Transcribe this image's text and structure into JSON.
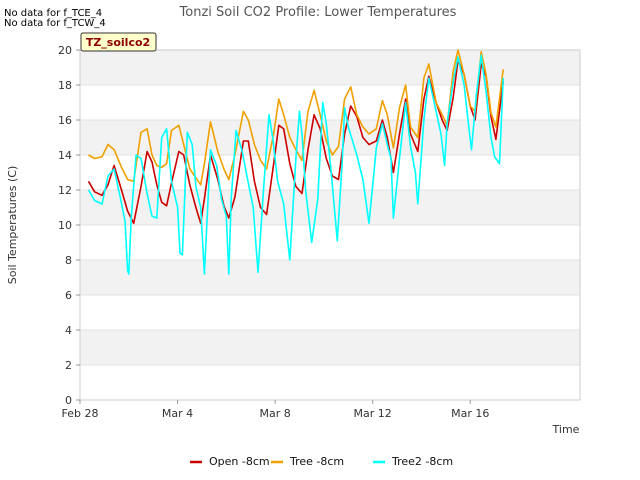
{
  "header_notes": [
    "No data for f_TCE_4",
    "No data for f_TCW_4"
  ],
  "badge": "TZ_soilco2",
  "chart_data": {
    "type": "line",
    "title": "Tonzi Soil CO2 Profile: Lower Temperatures",
    "xlabel": "Time",
    "ylabel": "Soil Temperatures (C)",
    "xlim": [
      0,
      20.5
    ],
    "ylim": [
      0,
      20
    ],
    "x_tick_values": [
      0,
      4,
      8,
      12,
      16
    ],
    "x_tick_labels": [
      "Feb 28",
      "Mar 4",
      "Mar 8",
      "Mar 12",
      "Mar 16"
    ],
    "y_ticks": [
      0,
      2,
      4,
      6,
      8,
      10,
      12,
      14,
      16,
      18,
      20
    ],
    "grid": true,
    "legend_position": "bottom",
    "x_unit": "days since Feb 28",
    "series": [
      {
        "name": "Open -8cm",
        "color": "#cc0000",
        "x": [
          0.35,
          0.6,
          0.9,
          1.15,
          1.4,
          1.7,
          1.95,
          2.2,
          2.5,
          2.75,
          2.95,
          3.15,
          3.35,
          3.55,
          3.75,
          4.05,
          4.25,
          4.5,
          4.75,
          4.95,
          5.1,
          5.35,
          5.65,
          5.9,
          6.1,
          6.35,
          6.7,
          6.9,
          7.15,
          7.4,
          7.65,
          7.95,
          8.15,
          8.35,
          8.6,
          8.85,
          9.1,
          9.35,
          9.6,
          9.85,
          10.1,
          10.35,
          10.6,
          10.85,
          11.1,
          11.35,
          11.6,
          11.85,
          12.15,
          12.4,
          12.6,
          12.85,
          13.1,
          13.35,
          13.55,
          13.85,
          14.1,
          14.3,
          14.6,
          14.85,
          15.05,
          15.3,
          15.5,
          15.75,
          16.0,
          16.2,
          16.45,
          16.65,
          16.85,
          17.05,
          17.35
        ],
        "y": [
          12.5,
          11.9,
          11.7,
          12.3,
          13.4,
          12.0,
          10.8,
          10.1,
          12.2,
          14.2,
          13.6,
          12.3,
          11.3,
          11.1,
          12.4,
          14.2,
          14.0,
          12.3,
          11.0,
          10.1,
          11.5,
          14.0,
          12.6,
          11.1,
          10.4,
          11.6,
          14.8,
          14.8,
          12.5,
          11.0,
          10.6,
          13.6,
          15.7,
          15.5,
          13.5,
          12.2,
          11.8,
          14.3,
          16.3,
          15.5,
          13.8,
          12.8,
          12.6,
          15.2,
          16.8,
          16.2,
          15.0,
          14.6,
          14.8,
          16.0,
          15.0,
          13.0,
          15.2,
          17.2,
          15.2,
          14.2,
          17.2,
          18.5,
          17.0,
          16.0,
          15.4,
          17.3,
          19.4,
          18.6,
          16.8,
          16.0,
          19.2,
          18.5,
          16.2,
          14.9,
          18.2
        ]
      },
      {
        "name": "Tree -8cm",
        "color": "#f0a000",
        "x": [
          0.35,
          0.6,
          0.9,
          1.15,
          1.4,
          1.7,
          1.95,
          2.2,
          2.5,
          2.75,
          2.95,
          3.15,
          3.35,
          3.55,
          3.75,
          4.05,
          4.25,
          4.5,
          4.75,
          4.95,
          5.1,
          5.35,
          5.65,
          5.9,
          6.1,
          6.35,
          6.7,
          6.9,
          7.15,
          7.4,
          7.65,
          7.95,
          8.15,
          8.35,
          8.6,
          8.85,
          9.1,
          9.35,
          9.6,
          9.85,
          10.1,
          10.35,
          10.6,
          10.85,
          11.1,
          11.35,
          11.6,
          11.85,
          12.15,
          12.4,
          12.6,
          12.85,
          13.1,
          13.35,
          13.55,
          13.85,
          14.1,
          14.3,
          14.6,
          14.85,
          15.05,
          15.3,
          15.5,
          15.75,
          16.0,
          16.2,
          16.45,
          16.65,
          16.85,
          17.05,
          17.35
        ],
        "y": [
          14.0,
          13.8,
          13.9,
          14.6,
          14.3,
          13.3,
          12.6,
          12.5,
          15.3,
          15.5,
          14.0,
          13.4,
          13.3,
          13.5,
          15.4,
          15.7,
          14.6,
          13.2,
          12.7,
          12.3,
          13.5,
          15.9,
          14.2,
          13.2,
          12.6,
          14.0,
          16.5,
          16.0,
          14.6,
          13.7,
          13.2,
          15.3,
          17.2,
          16.3,
          15.0,
          14.3,
          13.7,
          16.5,
          17.7,
          16.3,
          14.8,
          14.0,
          14.5,
          17.2,
          17.9,
          16.3,
          15.6,
          15.2,
          15.5,
          17.1,
          16.3,
          14.4,
          16.7,
          18.0,
          15.6,
          15.0,
          18.4,
          19.2,
          17.0,
          16.3,
          15.7,
          18.8,
          20.0,
          18.6,
          16.8,
          16.5,
          19.9,
          18.6,
          16.4,
          15.6,
          18.9
        ]
      },
      {
        "name": "Tree2 -8cm",
        "color": "#00ffff",
        "x": [
          0.35,
          0.6,
          0.9,
          1.15,
          1.4,
          1.65,
          1.85,
          1.95,
          2.0,
          2.1,
          2.3,
          2.5,
          2.75,
          2.95,
          3.15,
          3.35,
          3.55,
          3.75,
          4.0,
          4.1,
          4.2,
          4.4,
          4.6,
          4.75,
          4.95,
          5.1,
          5.35,
          5.6,
          5.8,
          6.0,
          6.1,
          6.2,
          6.4,
          6.65,
          6.9,
          7.1,
          7.3,
          7.55,
          7.75,
          7.9,
          8.1,
          8.35,
          8.6,
          8.85,
          9.0,
          9.1,
          9.25,
          9.5,
          9.75,
          9.95,
          10.1,
          10.3,
          10.55,
          10.75,
          10.85,
          11.0,
          11.35,
          11.6,
          11.85,
          12.15,
          12.4,
          12.6,
          12.75,
          12.85,
          13.1,
          13.35,
          13.55,
          13.75,
          13.85,
          14.1,
          14.3,
          14.6,
          14.8,
          14.95,
          15.05,
          15.3,
          15.5,
          15.75,
          15.95,
          16.05,
          16.25,
          16.45,
          16.65,
          16.85,
          17.0,
          17.2,
          17.35
        ],
        "y": [
          12.0,
          11.4,
          11.2,
          12.8,
          13.2,
          11.6,
          10.2,
          7.4,
          7.2,
          10.4,
          14.0,
          13.8,
          11.8,
          10.5,
          10.4,
          15.0,
          15.5,
          12.5,
          11.0,
          8.4,
          8.3,
          15.3,
          14.6,
          12.2,
          11.0,
          7.2,
          14.3,
          13.4,
          11.5,
          10.5,
          7.2,
          11.5,
          15.4,
          14.2,
          12.4,
          11.0,
          7.3,
          12.5,
          16.3,
          15.0,
          12.5,
          11.2,
          8.0,
          13.8,
          16.5,
          15.2,
          12.0,
          9.0,
          11.5,
          17.0,
          15.8,
          13.0,
          9.1,
          13.6,
          16.7,
          15.6,
          14.0,
          12.6,
          10.1,
          14.4,
          15.8,
          14.6,
          13.8,
          10.4,
          13.8,
          17.0,
          14.5,
          13.0,
          11.2,
          16.0,
          18.4,
          16.5,
          15.2,
          13.4,
          15.8,
          18.2,
          19.6,
          18.0,
          15.5,
          14.3,
          17.4,
          19.7,
          17.6,
          15.0,
          13.9,
          13.5,
          18.4
        ]
      }
    ]
  }
}
